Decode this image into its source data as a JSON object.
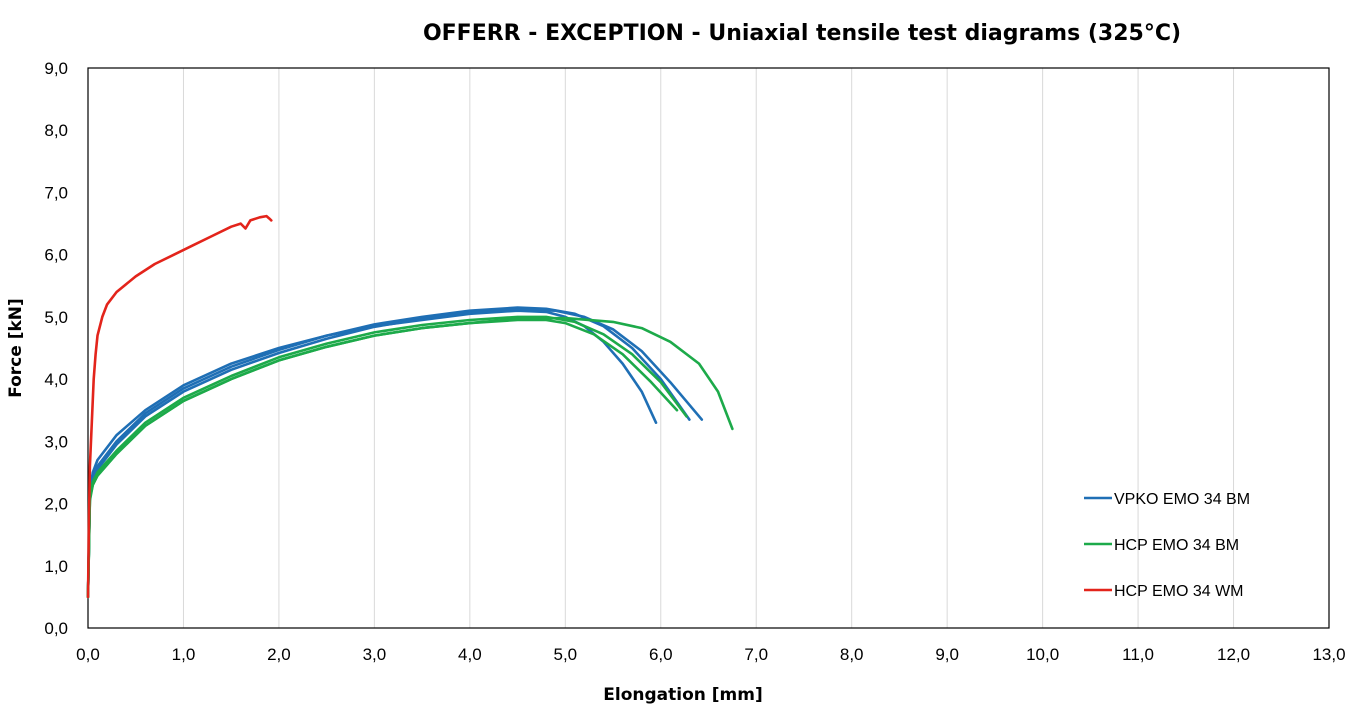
{
  "chart_data": {
    "type": "line",
    "title": "OFFERR - EXCEPTION - Uniaxial tensile test diagrams (325°C)",
    "xlabel": "Elongation [mm]",
    "ylabel": "Force [kN]",
    "xlim": [
      0,
      13
    ],
    "ylim": [
      0,
      9
    ],
    "x_ticks": [
      "0,0",
      "1,0",
      "2,0",
      "3,0",
      "4,0",
      "5,0",
      "6,0",
      "7,0",
      "8,0",
      "9,0",
      "10,0",
      "11,0",
      "12,0",
      "13,0"
    ],
    "y_ticks": [
      "0,0",
      "1,0",
      "2,0",
      "3,0",
      "4,0",
      "5,0",
      "6,0",
      "7,0",
      "8,0",
      "9,0"
    ],
    "grid": "vertical",
    "legend_position": "bottom-right",
    "legend": [
      {
        "label": "VPKO EMO 34 BM",
        "color": "#1F6FB5"
      },
      {
        "label": "HCP EMO 34 BM",
        "color": "#1DAA4A"
      },
      {
        "label": "HCP EMO 34 WM",
        "color": "#E3241B"
      }
    ],
    "series": [
      {
        "legend": 0,
        "points": [
          [
            0,
            0.5
          ],
          [
            0.02,
            2.2
          ],
          [
            0.05,
            2.5
          ],
          [
            0.1,
            2.7
          ],
          [
            0.3,
            3.1
          ],
          [
            0.6,
            3.5
          ],
          [
            1.0,
            3.9
          ],
          [
            1.5,
            4.25
          ],
          [
            2.0,
            4.5
          ],
          [
            2.5,
            4.7
          ],
          [
            3.0,
            4.85
          ],
          [
            3.5,
            4.95
          ],
          [
            4.0,
            5.05
          ],
          [
            4.5,
            5.1
          ],
          [
            4.8,
            5.08
          ],
          [
            5.0,
            5.0
          ],
          [
            5.2,
            4.85
          ],
          [
            5.4,
            4.6
          ],
          [
            5.6,
            4.25
          ],
          [
            5.8,
            3.8
          ],
          [
            5.95,
            3.3
          ]
        ]
      },
      {
        "legend": 0,
        "points": [
          [
            0,
            0.5
          ],
          [
            0.02,
            2.2
          ],
          [
            0.05,
            2.45
          ],
          [
            0.1,
            2.6
          ],
          [
            0.3,
            3.0
          ],
          [
            0.6,
            3.45
          ],
          [
            1.0,
            3.85
          ],
          [
            1.5,
            4.2
          ],
          [
            2.0,
            4.47
          ],
          [
            2.5,
            4.7
          ],
          [
            3.0,
            4.88
          ],
          [
            3.5,
            5.0
          ],
          [
            4.0,
            5.1
          ],
          [
            4.5,
            5.15
          ],
          [
            4.8,
            5.13
          ],
          [
            5.1,
            5.05
          ],
          [
            5.4,
            4.85
          ],
          [
            5.7,
            4.5
          ],
          [
            6.0,
            4.0
          ],
          [
            6.3,
            3.35
          ]
        ]
      },
      {
        "legend": 0,
        "points": [
          [
            0,
            0.5
          ],
          [
            0.02,
            2.2
          ],
          [
            0.05,
            2.4
          ],
          [
            0.1,
            2.55
          ],
          [
            0.3,
            2.95
          ],
          [
            0.6,
            3.4
          ],
          [
            1.0,
            3.8
          ],
          [
            1.5,
            4.15
          ],
          [
            2.0,
            4.42
          ],
          [
            2.5,
            4.65
          ],
          [
            3.0,
            4.84
          ],
          [
            3.5,
            4.97
          ],
          [
            4.0,
            5.07
          ],
          [
            4.5,
            5.12
          ],
          [
            4.9,
            5.1
          ],
          [
            5.2,
            5.0
          ],
          [
            5.5,
            4.8
          ],
          [
            5.8,
            4.45
          ],
          [
            6.1,
            3.95
          ],
          [
            6.43,
            3.35
          ]
        ]
      },
      {
        "legend": 1,
        "points": [
          [
            0,
            0.5
          ],
          [
            0.02,
            2.1
          ],
          [
            0.05,
            2.3
          ],
          [
            0.1,
            2.45
          ],
          [
            0.3,
            2.8
          ],
          [
            0.6,
            3.25
          ],
          [
            1.0,
            3.65
          ],
          [
            1.5,
            4.0
          ],
          [
            2.0,
            4.3
          ],
          [
            2.5,
            4.52
          ],
          [
            3.0,
            4.7
          ],
          [
            3.5,
            4.82
          ],
          [
            4.0,
            4.9
          ],
          [
            4.5,
            4.95
          ],
          [
            4.8,
            4.95
          ],
          [
            5.0,
            4.9
          ],
          [
            5.3,
            4.72
          ],
          [
            5.6,
            4.4
          ],
          [
            5.9,
            3.95
          ],
          [
            6.17,
            3.5
          ]
        ]
      },
      {
        "legend": 1,
        "points": [
          [
            0,
            0.5
          ],
          [
            0.02,
            2.1
          ],
          [
            0.05,
            2.35
          ],
          [
            0.1,
            2.5
          ],
          [
            0.3,
            2.85
          ],
          [
            0.6,
            3.3
          ],
          [
            1.0,
            3.7
          ],
          [
            1.5,
            4.05
          ],
          [
            2.0,
            4.35
          ],
          [
            2.5,
            4.57
          ],
          [
            3.0,
            4.75
          ],
          [
            3.5,
            4.87
          ],
          [
            4.0,
            4.95
          ],
          [
            4.5,
            5.0
          ],
          [
            4.8,
            5.0
          ],
          [
            5.1,
            4.92
          ],
          [
            5.4,
            4.72
          ],
          [
            5.7,
            4.4
          ],
          [
            6.0,
            3.95
          ],
          [
            6.27,
            3.4
          ]
        ]
      },
      {
        "legend": 1,
        "points": [
          [
            0,
            0.5
          ],
          [
            0.02,
            2.05
          ],
          [
            0.05,
            2.3
          ],
          [
            0.1,
            2.45
          ],
          [
            0.3,
            2.8
          ],
          [
            0.6,
            3.25
          ],
          [
            1.0,
            3.65
          ],
          [
            1.5,
            4.0
          ],
          [
            2.0,
            4.3
          ],
          [
            2.5,
            4.52
          ],
          [
            3.0,
            4.7
          ],
          [
            3.5,
            4.82
          ],
          [
            4.0,
            4.9
          ],
          [
            4.5,
            4.97
          ],
          [
            5.0,
            4.98
          ],
          [
            5.5,
            4.92
          ],
          [
            5.8,
            4.82
          ],
          [
            6.1,
            4.6
          ],
          [
            6.4,
            4.25
          ],
          [
            6.6,
            3.8
          ],
          [
            6.75,
            3.2
          ]
        ]
      },
      {
        "legend": 2,
        "points": [
          [
            0,
            0.5
          ],
          [
            0.01,
            1.8
          ],
          [
            0.02,
            2.6
          ],
          [
            0.04,
            3.3
          ],
          [
            0.06,
            4.0
          ],
          [
            0.08,
            4.4
          ],
          [
            0.1,
            4.7
          ],
          [
            0.15,
            5.0
          ],
          [
            0.2,
            5.2
          ],
          [
            0.3,
            5.4
          ],
          [
            0.5,
            5.65
          ],
          [
            0.7,
            5.85
          ],
          [
            0.9,
            6.0
          ],
          [
            1.1,
            6.15
          ],
          [
            1.3,
            6.3
          ],
          [
            1.5,
            6.45
          ],
          [
            1.6,
            6.5
          ],
          [
            1.65,
            6.42
          ],
          [
            1.7,
            6.55
          ],
          [
            1.8,
            6.6
          ],
          [
            1.87,
            6.62
          ],
          [
            1.9,
            6.58
          ],
          [
            1.92,
            6.55
          ]
        ]
      }
    ]
  }
}
